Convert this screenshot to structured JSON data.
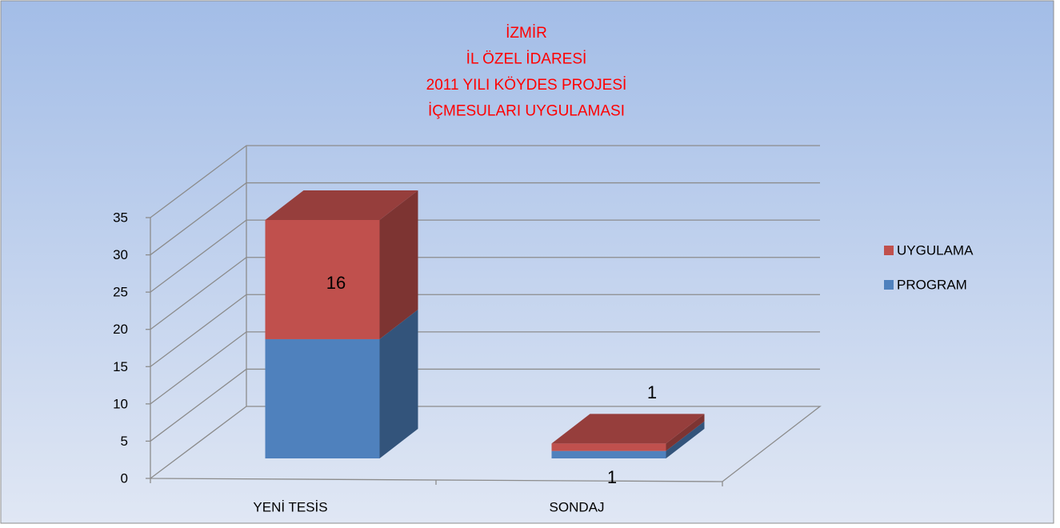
{
  "chart_data": {
    "type": "bar3d_stacked",
    "title": [
      "İZMİR",
      "İL ÖZEL İDARESİ",
      "2011 YILI KÖYDES PROJESİ",
      "İÇMESULARI UYGULAMASI"
    ],
    "categories": [
      "YENİ TESİS",
      "SONDAJ"
    ],
    "series": [
      {
        "name": "PROGRAM",
        "color": "#4f81bd",
        "values": [
          16,
          1
        ]
      },
      {
        "name": "UYGULAMA",
        "color": "#c0504d",
        "values": [
          16,
          1
        ]
      }
    ],
    "ylim": [
      0,
      35
    ],
    "yticks": [
      0,
      5,
      10,
      15,
      20,
      25,
      30,
      35
    ],
    "grid": true,
    "legend": "right"
  }
}
